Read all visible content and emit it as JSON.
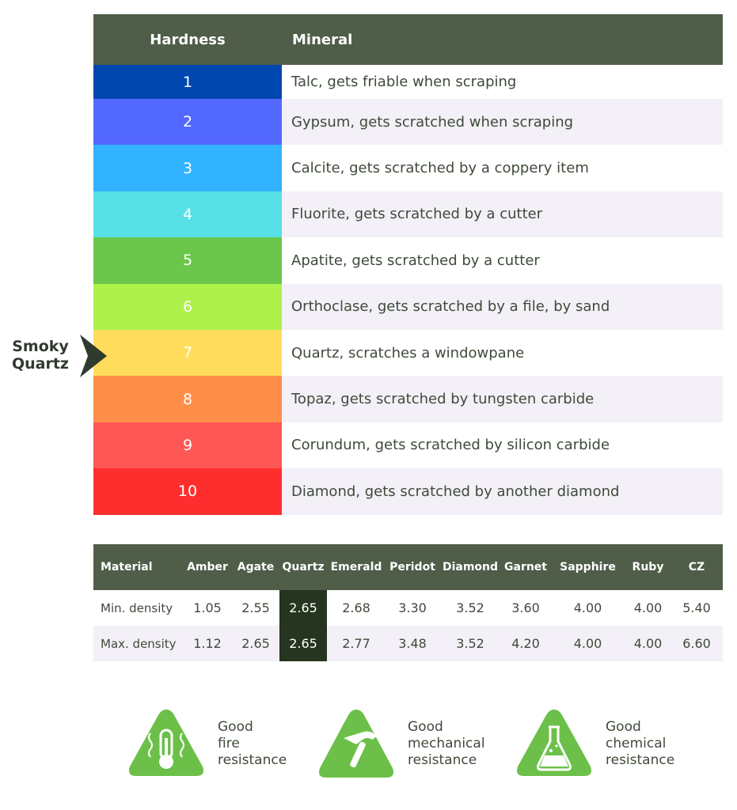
{
  "hardness_table": {
    "header": {
      "hardness": "Hardness",
      "mineral": "Mineral"
    },
    "rows": [
      {
        "level": "1",
        "mineral": "Talc, gets friable when scraping",
        "color": "#0047b0"
      },
      {
        "level": "2",
        "mineral": "Gypsum, gets scratched when scraping",
        "color": "#5268ff"
      },
      {
        "level": "3",
        "mineral": "Calcite, gets scratched by a coppery item",
        "color": "#31b3ff"
      },
      {
        "level": "4",
        "mineral": "Fluorite, gets scratched by a cutter",
        "color": "#57e1e6"
      },
      {
        "level": "5",
        "mineral": "Apatite, gets scratched by a cutter",
        "color": "#6ac74b"
      },
      {
        "level": "6",
        "mineral": "Orthoclase, gets scratched by a file, by sand",
        "color": "#aef14b"
      },
      {
        "level": "7",
        "mineral": "Quartz, scratches a windowpane",
        "color": "#ffdc5c"
      },
      {
        "level": "8",
        "mineral": "Topaz, gets scratched by tungsten carbide",
        "color": "#ff8f48"
      },
      {
        "level": "9",
        "mineral": "Corundum, gets scratched by silicon carbide",
        "color": "#ff5656"
      },
      {
        "level": "10",
        "mineral": "Diamond, gets scratched by another diamond",
        "color": "#ff2e2e"
      }
    ]
  },
  "marker": {
    "line1": "Smoky",
    "line2": "Quartz"
  },
  "density_table": {
    "headers": [
      "Material",
      "Amber",
      "Agate",
      "Quartz",
      "Emerald",
      "Peridot",
      "Diamond",
      "Garnet",
      "Sapphire",
      "Ruby",
      "CZ"
    ],
    "rows": [
      [
        "Min. density",
        "1.05",
        "2.55",
        "2.65",
        "2.68",
        "3.30",
        "3.52",
        "3.60",
        "4.00",
        "4.00",
        "5.40"
      ],
      [
        "Max. density",
        "1.12",
        "2.65",
        "2.65",
        "2.77",
        "3.48",
        "3.52",
        "4.20",
        "4.00",
        "4.00",
        "6.60"
      ]
    ],
    "highlight": "Quartz",
    "highlight_color": "#25351f"
  },
  "features": [
    {
      "icon": "thermometer-icon",
      "text": "Good\nfire\nresistance"
    },
    {
      "icon": "hammer-icon",
      "text": "Good\nmechanical\nresistance"
    },
    {
      "icon": "flask-icon",
      "text": "Good\nchemical\nresistance"
    }
  ],
  "colors": {
    "header": "#4f5d49",
    "accent_green": "#6cc04a",
    "row_alt": "#f3f0f7"
  }
}
